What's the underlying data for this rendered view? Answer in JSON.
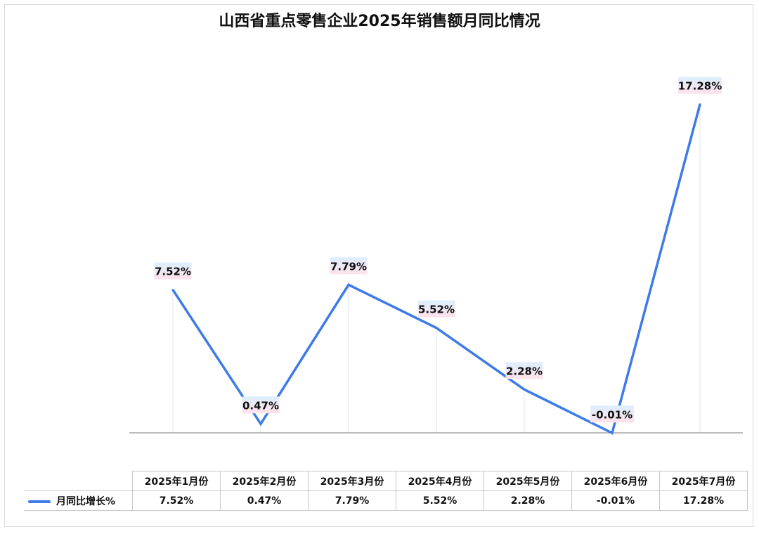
{
  "chart_data": {
    "type": "line",
    "title": "山西省重点零售企业2025年销售额月同比情况",
    "categories": [
      "2025年1月份",
      "2025年2月份",
      "2025年3月份",
      "2025年4月份",
      "2025年5月份",
      "2025年6月份",
      "2025年7月份"
    ],
    "series": [
      {
        "name": "月同比增长%",
        "values": [
          7.52,
          0.47,
          7.79,
          5.52,
          2.28,
          -0.01,
          17.28
        ],
        "labels": [
          "7.52%",
          "0.47%",
          "7.79%",
          "5.52%",
          "2.28%",
          "-0.01%",
          "17.28%"
        ],
        "color": "#3d7be8"
      }
    ],
    "grid": false,
    "legend": "data table"
  }
}
